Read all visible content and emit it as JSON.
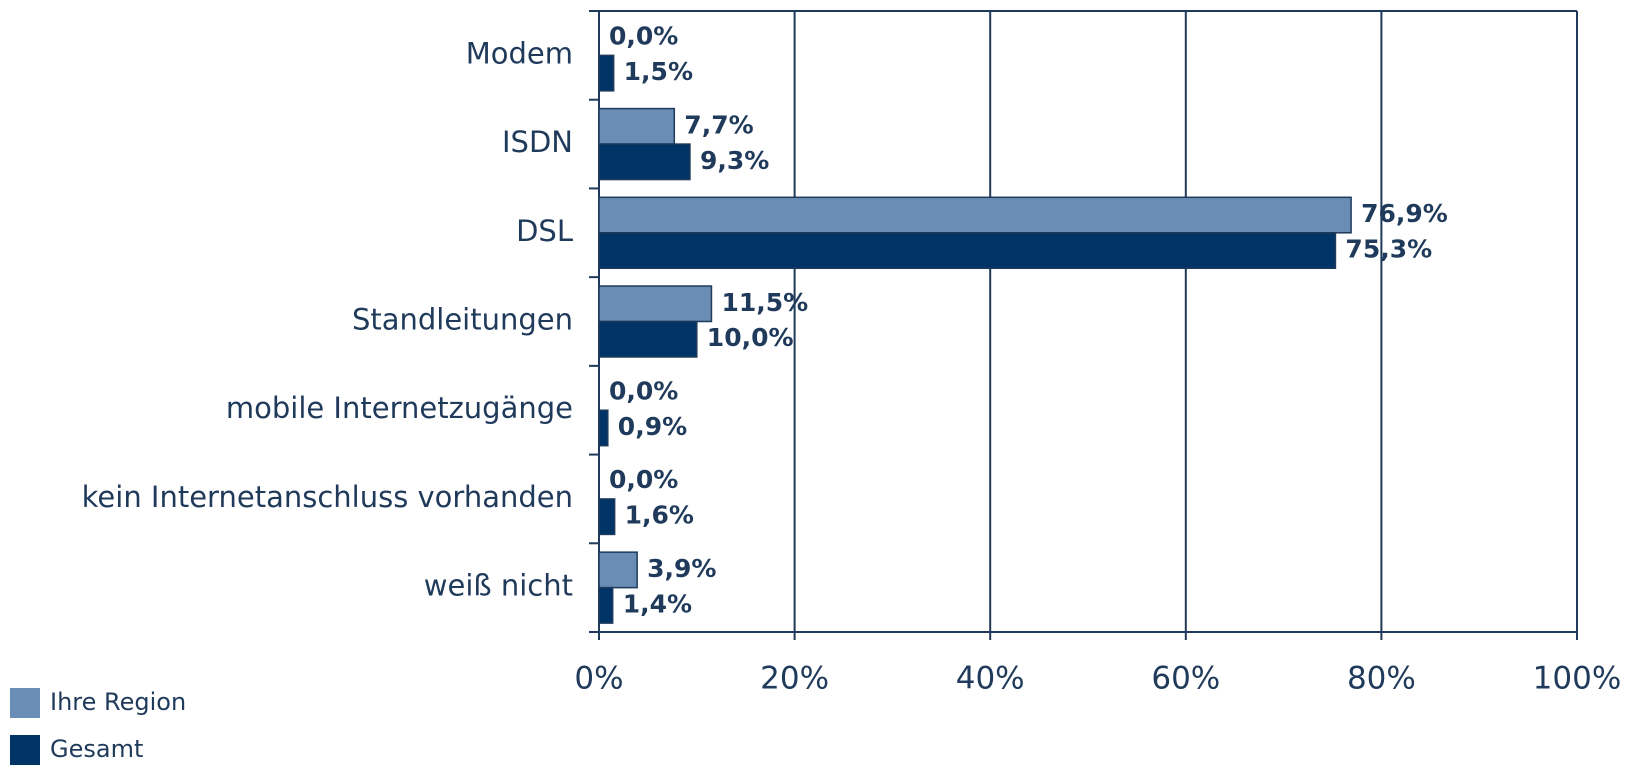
{
  "chart_data": {
    "type": "bar",
    "orientation": "horizontal",
    "categories": [
      "Modem",
      "ISDN",
      "DSL",
      "Standleitungen",
      "mobile Internetzugänge",
      "kein Internetanschluss vorhanden",
      "weiß nicht"
    ],
    "series": [
      {
        "name": "Ihre Region",
        "color": "#6a8db5",
        "values": [
          0,
          7.7,
          76.9,
          11.5,
          0,
          0,
          3.9
        ],
        "value_labels": [
          "0,0%",
          "7,7%",
          "76,9%",
          "11,5%",
          "0,0%",
          "0,0%",
          "3,9%"
        ]
      },
      {
        "name": "Gesamt",
        "color": "#003366",
        "values": [
          1.5,
          9.3,
          75.3,
          10.0,
          0.9,
          1.6,
          1.4
        ],
        "value_labels": [
          "1,5%",
          "9,3%",
          "75,3%",
          "10,0%",
          "0,9%",
          "1,6%",
          "1,4%"
        ]
      }
    ],
    "xlim": [
      0,
      100
    ],
    "xticks": [
      {
        "value": 0,
        "label": "0%"
      },
      {
        "value": 20,
        "label": "20%"
      },
      {
        "value": 40,
        "label": "40%"
      },
      {
        "value": 60,
        "label": "60%"
      },
      {
        "value": 80,
        "label": "80%"
      },
      {
        "value": 100,
        "label": "100%"
      }
    ],
    "grid": true,
    "legend": "bottom-left"
  }
}
